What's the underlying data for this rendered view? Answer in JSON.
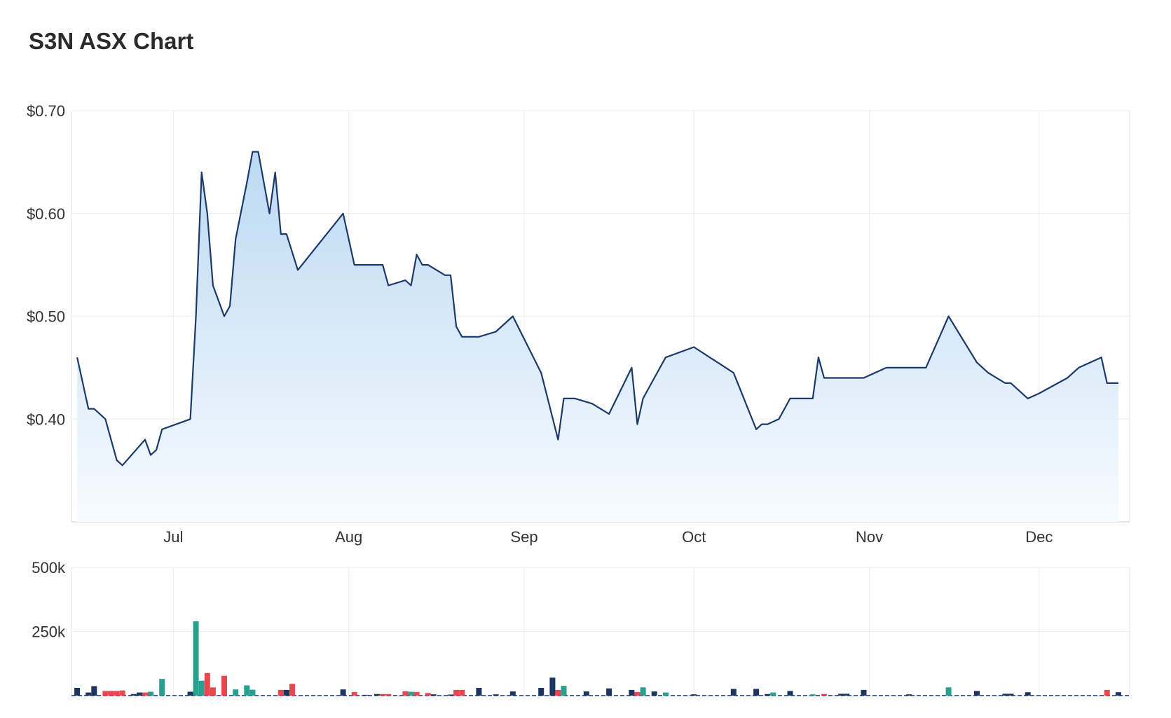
{
  "title": "S3N ASX Chart",
  "chart_data": [
    {
      "type": "area",
      "ylim": [
        0.3,
        0.7
      ],
      "y_ticks": [
        {
          "value": 0.7,
          "label": "$0.70"
        },
        {
          "value": 0.6,
          "label": "$0.60"
        },
        {
          "value": 0.5,
          "label": "$0.50"
        },
        {
          "value": 0.4,
          "label": "$0.40"
        }
      ],
      "x_ticks": [
        {
          "date": "2023-07-01",
          "label": "Jul"
        },
        {
          "date": "2023-08-01",
          "label": "Aug"
        },
        {
          "date": "2023-09-01",
          "label": "Sep"
        },
        {
          "date": "2023-10-01",
          "label": "Oct"
        },
        {
          "date": "2023-11-01",
          "label": "Nov"
        },
        {
          "date": "2023-12-01",
          "label": "Dec"
        }
      ],
      "xlim": [
        "2023-06-13",
        "2023-12-17"
      ],
      "grid": true,
      "colors": {
        "line": "#1b3a6b",
        "fill_top": "#bcd9f2",
        "fill_bottom": "#f7fbff",
        "grid": "#ececec"
      },
      "series": [
        {
          "points": [
            [
              "2023-06-14",
              0.46
            ],
            [
              "2023-06-16",
              0.41
            ],
            [
              "2023-06-17",
              0.41
            ],
            [
              "2023-06-19",
              0.4
            ],
            [
              "2023-06-21",
              0.36
            ],
            [
              "2023-06-22",
              0.355
            ],
            [
              "2023-06-26",
              0.38
            ],
            [
              "2023-06-27",
              0.365
            ],
            [
              "2023-06-28",
              0.37
            ],
            [
              "2023-06-29",
              0.39
            ],
            [
              "2023-07-04",
              0.4
            ],
            [
              "2023-07-05",
              0.5
            ],
            [
              "2023-07-06",
              0.64
            ],
            [
              "2023-07-07",
              0.6
            ],
            [
              "2023-07-08",
              0.53
            ],
            [
              "2023-07-10",
              0.5
            ],
            [
              "2023-07-11",
              0.51
            ],
            [
              "2023-07-12",
              0.575
            ],
            [
              "2023-07-14",
              0.63
            ],
            [
              "2023-07-15",
              0.66
            ],
            [
              "2023-07-16",
              0.66
            ],
            [
              "2023-07-18",
              0.6
            ],
            [
              "2023-07-19",
              0.64
            ],
            [
              "2023-07-20",
              0.58
            ],
            [
              "2023-07-21",
              0.58
            ],
            [
              "2023-07-23",
              0.545
            ],
            [
              "2023-07-31",
              0.6
            ],
            [
              "2023-08-02",
              0.55
            ],
            [
              "2023-08-06",
              0.55
            ],
            [
              "2023-08-07",
              0.55
            ],
            [
              "2023-08-08",
              0.53
            ],
            [
              "2023-08-11",
              0.535
            ],
            [
              "2023-08-12",
              0.53
            ],
            [
              "2023-08-13",
              0.56
            ],
            [
              "2023-08-14",
              0.55
            ],
            [
              "2023-08-15",
              0.55
            ],
            [
              "2023-08-18",
              0.54
            ],
            [
              "2023-08-19",
              0.54
            ],
            [
              "2023-08-20",
              0.49
            ],
            [
              "2023-08-21",
              0.48
            ],
            [
              "2023-08-24",
              0.48
            ],
            [
              "2023-08-27",
              0.485
            ],
            [
              "2023-08-30",
              0.5
            ],
            [
              "2023-09-04",
              0.445
            ],
            [
              "2023-09-07",
              0.38
            ],
            [
              "2023-09-08",
              0.42
            ],
            [
              "2023-09-10",
              0.42
            ],
            [
              "2023-09-13",
              0.415
            ],
            [
              "2023-09-16",
              0.405
            ],
            [
              "2023-09-20",
              0.45
            ],
            [
              "2023-09-21",
              0.395
            ],
            [
              "2023-09-22",
              0.42
            ],
            [
              "2023-09-24",
              0.44
            ],
            [
              "2023-09-26",
              0.46
            ],
            [
              "2023-10-01",
              0.47
            ],
            [
              "2023-10-08",
              0.445
            ],
            [
              "2023-10-12",
              0.39
            ],
            [
              "2023-10-13",
              0.395
            ],
            [
              "2023-10-14",
              0.395
            ],
            [
              "2023-10-16",
              0.4
            ],
            [
              "2023-10-18",
              0.42
            ],
            [
              "2023-10-20",
              0.42
            ],
            [
              "2023-10-22",
              0.42
            ],
            [
              "2023-10-23",
              0.46
            ],
            [
              "2023-10-24",
              0.44
            ],
            [
              "2023-10-28",
              0.44
            ],
            [
              "2023-10-31",
              0.44
            ],
            [
              "2023-11-04",
              0.45
            ],
            [
              "2023-11-08",
              0.45
            ],
            [
              "2023-11-10",
              0.45
            ],
            [
              "2023-11-11",
              0.45
            ],
            [
              "2023-11-15",
              0.5
            ],
            [
              "2023-11-20",
              0.455
            ],
            [
              "2023-11-22",
              0.445
            ],
            [
              "2023-11-25",
              0.435
            ],
            [
              "2023-11-26",
              0.435
            ],
            [
              "2023-11-29",
              0.42
            ],
            [
              "2023-12-01",
              0.425
            ],
            [
              "2023-12-06",
              0.44
            ],
            [
              "2023-12-08",
              0.45
            ],
            [
              "2023-12-12",
              0.46
            ],
            [
              "2023-12-13",
              0.435
            ],
            [
              "2023-12-15",
              0.435
            ]
          ]
        }
      ]
    },
    {
      "type": "bar",
      "ylim": [
        0,
        500000
      ],
      "y_ticks": [
        {
          "value": 500000,
          "label": "500k"
        },
        {
          "value": 250000,
          "label": "250k"
        }
      ],
      "xlim": [
        "2023-06-13",
        "2023-12-17"
      ],
      "grid": true,
      "colors": {
        "up": "#26a08f",
        "down": "#e8474d",
        "neutral": "#1b3561"
      },
      "bars": [
        [
          "2023-06-14",
          30000,
          "neutral"
        ],
        [
          "2023-06-16",
          12000,
          "neutral"
        ],
        [
          "2023-06-17",
          37000,
          "neutral"
        ],
        [
          "2023-06-19",
          18000,
          "down"
        ],
        [
          "2023-06-20",
          18000,
          "down"
        ],
        [
          "2023-06-21",
          18000,
          "down"
        ],
        [
          "2023-06-22",
          20000,
          "down"
        ],
        [
          "2023-06-24",
          6000,
          "neutral"
        ],
        [
          "2023-06-25",
          12000,
          "neutral"
        ],
        [
          "2023-06-26",
          12000,
          "down"
        ],
        [
          "2023-06-27",
          15000,
          "up"
        ],
        [
          "2023-06-29",
          65000,
          "up"
        ],
        [
          "2023-07-04",
          15000,
          "neutral"
        ],
        [
          "2023-07-05",
          290000,
          "up"
        ],
        [
          "2023-07-06",
          58000,
          "up"
        ],
        [
          "2023-07-07",
          88000,
          "down"
        ],
        [
          "2023-07-08",
          32000,
          "down"
        ],
        [
          "2023-07-10",
          77000,
          "down"
        ],
        [
          "2023-07-12",
          24000,
          "up"
        ],
        [
          "2023-07-14",
          40000,
          "up"
        ],
        [
          "2023-07-15",
          23000,
          "up"
        ],
        [
          "2023-07-20",
          22000,
          "down"
        ],
        [
          "2023-07-21",
          22000,
          "neutral"
        ],
        [
          "2023-07-22",
          46000,
          "down"
        ],
        [
          "2023-07-31",
          24000,
          "neutral"
        ],
        [
          "2023-08-02",
          14000,
          "down"
        ],
        [
          "2023-08-04",
          3000,
          "neutral"
        ],
        [
          "2023-08-06",
          6000,
          "neutral"
        ],
        [
          "2023-08-07",
          6000,
          "down"
        ],
        [
          "2023-08-08",
          6000,
          "down"
        ],
        [
          "2023-08-11",
          17000,
          "down"
        ],
        [
          "2023-08-12",
          15000,
          "up"
        ],
        [
          "2023-08-13",
          14000,
          "down"
        ],
        [
          "2023-08-15",
          10000,
          "down"
        ],
        [
          "2023-08-16",
          5000,
          "neutral"
        ],
        [
          "2023-08-19",
          4000,
          "neutral"
        ],
        [
          "2023-08-20",
          22000,
          "down"
        ],
        [
          "2023-08-21",
          22000,
          "down"
        ],
        [
          "2023-08-24",
          30000,
          "neutral"
        ],
        [
          "2023-08-27",
          5000,
          "neutral"
        ],
        [
          "2023-08-30",
          16000,
          "neutral"
        ],
        [
          "2023-09-04",
          30000,
          "neutral"
        ],
        [
          "2023-09-06",
          70000,
          "neutral"
        ],
        [
          "2023-09-07",
          22000,
          "down"
        ],
        [
          "2023-09-08",
          38000,
          "up"
        ],
        [
          "2023-09-12",
          16000,
          "neutral"
        ],
        [
          "2023-09-16",
          28000,
          "neutral"
        ],
        [
          "2023-09-20",
          22000,
          "neutral"
        ],
        [
          "2023-09-21",
          14000,
          "down"
        ],
        [
          "2023-09-22",
          32000,
          "up"
        ],
        [
          "2023-09-24",
          16000,
          "neutral"
        ],
        [
          "2023-09-26",
          12000,
          "up"
        ],
        [
          "2023-10-01",
          5000,
          "neutral"
        ],
        [
          "2023-10-08",
          26000,
          "neutral"
        ],
        [
          "2023-10-12",
          26000,
          "neutral"
        ],
        [
          "2023-10-14",
          6000,
          "neutral"
        ],
        [
          "2023-10-15",
          12000,
          "up"
        ],
        [
          "2023-10-18",
          18000,
          "neutral"
        ],
        [
          "2023-10-22",
          5000,
          "up"
        ],
        [
          "2023-10-24",
          6000,
          "down"
        ],
        [
          "2023-10-27",
          7000,
          "neutral"
        ],
        [
          "2023-10-28",
          7000,
          "neutral"
        ],
        [
          "2023-10-31",
          22000,
          "neutral"
        ],
        [
          "2023-11-08",
          5000,
          "neutral"
        ],
        [
          "2023-11-15",
          32000,
          "up"
        ],
        [
          "2023-11-20",
          18000,
          "neutral"
        ],
        [
          "2023-11-25",
          7000,
          "neutral"
        ],
        [
          "2023-11-26",
          7000,
          "neutral"
        ],
        [
          "2023-11-29",
          13000,
          "neutral"
        ],
        [
          "2023-12-13",
          22000,
          "down"
        ],
        [
          "2023-12-15",
          13000,
          "neutral"
        ]
      ]
    }
  ]
}
